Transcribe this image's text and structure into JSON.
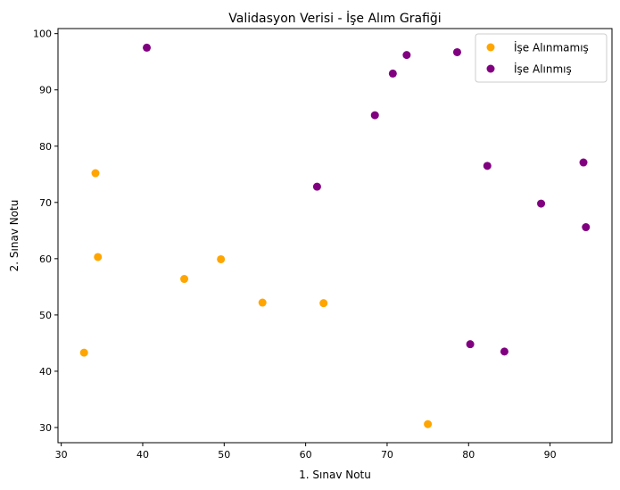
{
  "chart_data": {
    "type": "scatter",
    "title": "Validasyon Verisi - İşe Alım Grafiği",
    "xlabel": "1. Sınav Notu",
    "ylabel": "2. Sınav Notu",
    "xlim": [
      29.6,
      97.6
    ],
    "ylim": [
      27.3,
      100.9
    ],
    "xticks": [
      30,
      40,
      50,
      60,
      70,
      80,
      90
    ],
    "yticks": [
      30,
      40,
      50,
      60,
      70,
      80,
      90,
      100
    ],
    "grid": false,
    "legend_position": "top-right",
    "series": [
      {
        "name": "İşe Alınmamış",
        "color": "#FFA500",
        "points": [
          [
            34.2,
            75.2
          ],
          [
            34.5,
            60.3
          ],
          [
            32.8,
            43.3
          ],
          [
            45.1,
            56.4
          ],
          [
            49.6,
            59.9
          ],
          [
            54.7,
            52.2
          ],
          [
            62.2,
            52.1
          ],
          [
            75.0,
            30.6
          ]
        ]
      },
      {
        "name": "İşe Alınmış",
        "color": "#800080",
        "points": [
          [
            40.5,
            97.5
          ],
          [
            61.4,
            72.8
          ],
          [
            68.5,
            85.5
          ],
          [
            70.7,
            92.9
          ],
          [
            72.4,
            96.2
          ],
          [
            78.6,
            96.7
          ],
          [
            82.3,
            76.5
          ],
          [
            80.2,
            44.8
          ],
          [
            84.4,
            43.5
          ],
          [
            88.9,
            69.8
          ],
          [
            94.1,
            77.1
          ],
          [
            94.4,
            65.6
          ]
        ]
      }
    ]
  }
}
